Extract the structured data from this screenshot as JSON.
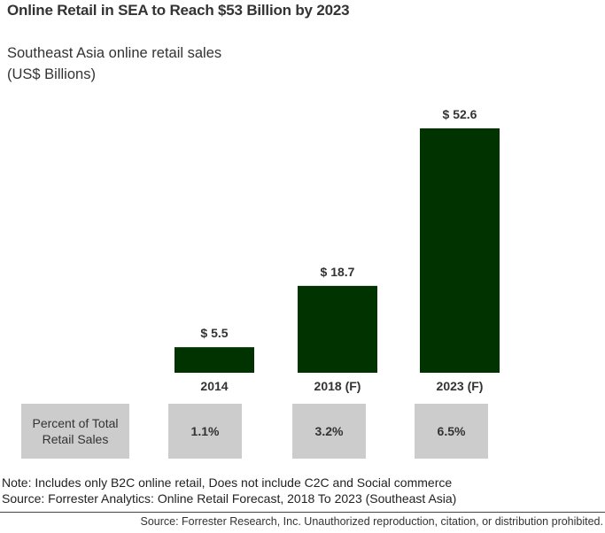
{
  "chart_data": {
    "type": "bar",
    "title": "Online Retail in SEA to Reach $53 Billion by 2023",
    "subtitle": [
      "Southeast Asia online retail sales",
      "(US$ Billions)"
    ],
    "categories": [
      "2014",
      "2018 (F)",
      "2023 (F)"
    ],
    "values": [
      5.5,
      18.7,
      52.6
    ],
    "value_labels": [
      "$ 5.5",
      "$ 18.7",
      "$ 52.6"
    ],
    "xlabel": "",
    "ylabel": "",
    "ylim": [
      0,
      52.6
    ],
    "grid": false,
    "bar_color": "#003300",
    "percent_row": {
      "label": [
        "Percent of Total",
        "Retail Sales"
      ],
      "values": [
        "1.1%",
        "3.2%",
        "6.5%"
      ]
    }
  },
  "footer": {
    "note": "Note: Includes only B2C online retail, Does not include C2C and Social commerce",
    "source": "Source: Forrester Analytics: Online Retail Forecast, 2018 To 2023 (Southeast Asia)",
    "copyright": "Source: Forrester Research, Inc. Unauthorized reproduction, citation, or distribution prohibited."
  },
  "colors": {
    "box_bg": "#cccccc",
    "text": "#333333"
  }
}
